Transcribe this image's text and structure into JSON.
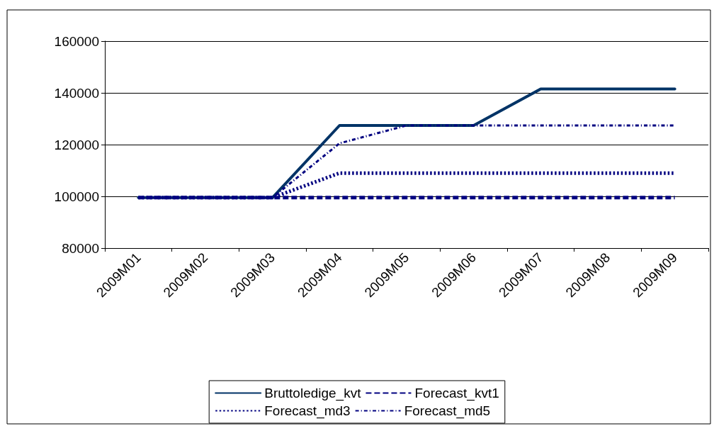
{
  "chart_data": {
    "type": "line",
    "categories": [
      "2009M01",
      "2009M02",
      "2009M03",
      "2009M04",
      "2009M05",
      "2009M06",
      "2009M07",
      "2009M08",
      "2009M09"
    ],
    "series": [
      {
        "name": "Bruttoledige_kvt",
        "color": "#003366",
        "line_style": "solid",
        "values": [
          99500,
          99500,
          99500,
          127400,
          127400,
          127400,
          141500,
          141500,
          141500
        ]
      },
      {
        "name": "Forecast_kvt1",
        "color": "#000080",
        "line_style": "dashed",
        "values": [
          99500,
          99500,
          99500,
          99500,
          99500,
          99500,
          99500,
          99500,
          99500
        ]
      },
      {
        "name": "Forecast_md3",
        "color": "#000080",
        "line_style": "dotted",
        "values": [
          99500,
          99500,
          99500,
          109000,
          109000,
          109000,
          109000,
          109000,
          109000
        ]
      },
      {
        "name": "Forecast_md5",
        "color": "#000080",
        "line_style": "dashdot",
        "values": [
          99500,
          99500,
          99500,
          120500,
          127400,
          127400,
          127400,
          127400,
          127400
        ]
      }
    ],
    "ylim": [
      80000,
      160000
    ],
    "yticks": [
      80000,
      100000,
      120000,
      140000,
      160000
    ],
    "grid": "y",
    "legend": "bottom",
    "marker": "none"
  }
}
